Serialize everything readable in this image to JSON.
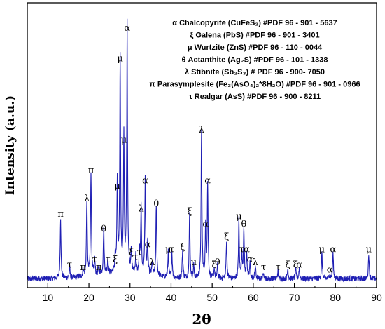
{
  "chart_data": {
    "type": "line",
    "xlabel": "2θ",
    "ylabel": "Intensity (a.u.)",
    "xlim": [
      5,
      90
    ],
    "ylim": [
      0,
      100
    ],
    "x_ticks": [
      "10",
      "20",
      "30",
      "40",
      "50",
      "60",
      "70",
      "80",
      "90"
    ],
    "line_color": "#1f1fb4",
    "legend_lines": [
      "α Chalcopyrite (CuFeS₂) #PDF 96 - 901 - 5637",
      "ξ Galena (PbS) #PDF 96 - 901 - 3401",
      "μ Wurtzite (ZnS) #PDF 96 - 110 - 0044",
      "θ Actanthite (Ag₂S) #PDF 96 - 101 - 1338",
      "λ Stibnite (Sb₂S₃) # PDF 96 - 900- 7050",
      "π Parasymplesite (Fe₃(AsO₄)₂*8H₂O) #PDF 96 - 901 - 0966",
      "τ Realgar (AsS) #PDF 96 - 900 - 8211"
    ],
    "peaks": [
      {
        "x": 13.1,
        "y": 24,
        "label": "π"
      },
      {
        "x": 15.3,
        "y": 4,
        "label": "τ"
      },
      {
        "x": 18.6,
        "y": 3,
        "label": "π"
      },
      {
        "x": 19.5,
        "y": 30,
        "label": "λ"
      },
      {
        "x": 20.5,
        "y": 41,
        "label": "π"
      },
      {
        "x": 21.4,
        "y": 6,
        "label": "τ"
      },
      {
        "x": 22.4,
        "y": 3,
        "label": "π"
      },
      {
        "x": 23.6,
        "y": 18,
        "label": "θ"
      },
      {
        "x": 24.6,
        "y": 6,
        "label": "τ"
      },
      {
        "x": 26.4,
        "y": 6,
        "label": "ξ"
      },
      {
        "x": 26.9,
        "y": 35,
        "label": "μ"
      },
      {
        "x": 27.6,
        "y": 85,
        "label": "μ"
      },
      {
        "x": 28.5,
        "y": 53,
        "label": "μ"
      },
      {
        "x": 29.3,
        "y": 97,
        "label": "α"
      },
      {
        "x": 30.3,
        "y": 9,
        "label": "ξ"
      },
      {
        "x": 31.4,
        "y": 7,
        "label": "τ"
      },
      {
        "x": 32.3,
        "y": 9,
        "label": "τ"
      },
      {
        "x": 32.7,
        "y": 26,
        "label": "λ"
      },
      {
        "x": 33.7,
        "y": 37,
        "label": "α"
      },
      {
        "x": 34.3,
        "y": 12,
        "label": "α"
      },
      {
        "x": 35.4,
        "y": 5,
        "label": "λ"
      },
      {
        "x": 36.4,
        "y": 28,
        "label": "θ"
      },
      {
        "x": 39.3,
        "y": 10,
        "label": "μ"
      },
      {
        "x": 40.2,
        "y": 10,
        "label": "τ"
      },
      {
        "x": 42.8,
        "y": 11,
        "label": "ξ"
      },
      {
        "x": 44.5,
        "y": 25,
        "label": "ξ"
      },
      {
        "x": 45.5,
        "y": 5,
        "label": "μ"
      },
      {
        "x": 47.4,
        "y": 57,
        "label": "λ"
      },
      {
        "x": 48.4,
        "y": 20,
        "label": "α"
      },
      {
        "x": 48.9,
        "y": 37,
        "label": "α"
      },
      {
        "x": 50.5,
        "y": 4,
        "label": "ξ"
      },
      {
        "x": 51.3,
        "y": 5,
        "label": "θ"
      },
      {
        "x": 53.5,
        "y": 15,
        "label": "ξ"
      },
      {
        "x": 56.5,
        "y": 23,
        "label": "μ"
      },
      {
        "x": 57.2,
        "y": 10,
        "label": "τ"
      },
      {
        "x": 57.7,
        "y": 20,
        "label": "θ"
      },
      {
        "x": 58.4,
        "y": 10,
        "label": "α"
      },
      {
        "x": 59.2,
        "y": 6,
        "label": "α"
      },
      {
        "x": 60.5,
        "y": 5,
        "label": "λ"
      },
      {
        "x": 62.5,
        "y": 3,
        "label": "τ"
      },
      {
        "x": 66.0,
        "y": 3,
        "label": "τ"
      },
      {
        "x": 68.4,
        "y": 4,
        "label": "ξ"
      },
      {
        "x": 70.3,
        "y": 4,
        "label": "ξ"
      },
      {
        "x": 71.2,
        "y": 4,
        "label": "α"
      },
      {
        "x": 76.7,
        "y": 10,
        "label": "μ"
      },
      {
        "x": 78.6,
        "y": 2,
        "label": "α"
      },
      {
        "x": 79.4,
        "y": 10,
        "label": "α"
      },
      {
        "x": 88.1,
        "y": 10,
        "label": "μ"
      }
    ]
  }
}
